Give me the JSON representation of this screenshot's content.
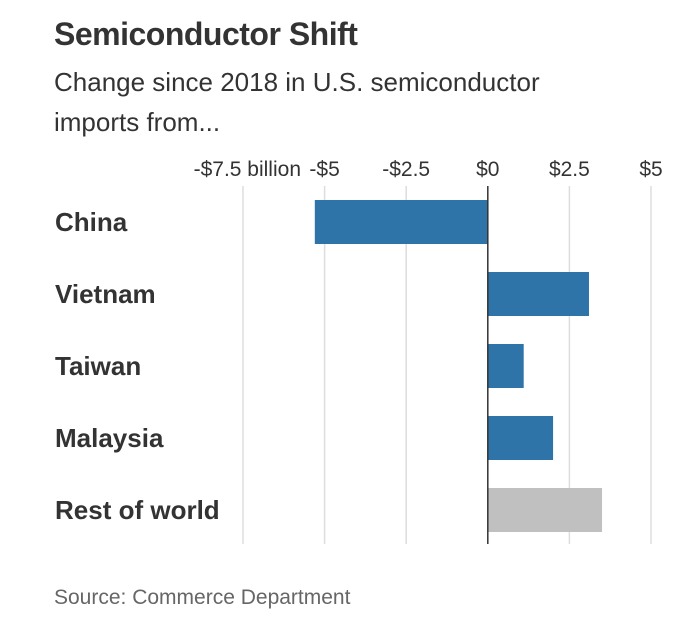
{
  "header": {
    "title": "Semiconductor Shift",
    "subtitle": "Change since 2018 in U.S. semiconductor imports from..."
  },
  "footer": {
    "source": "Source: Commerce Department"
  },
  "colors": {
    "highlight_bar": "#2f74a8",
    "muted_bar": "#c0c0c0",
    "gridline": "#dddddd",
    "zero_line": "#333333",
    "text": "#333333"
  },
  "chart_data": {
    "type": "bar",
    "orientation": "horizontal",
    "title": "Semiconductor Shift",
    "subtitle": "Change since 2018 in U.S. semiconductor imports from...",
    "categories": [
      "China",
      "Vietnam",
      "Taiwan",
      "Malaysia",
      "Rest of world"
    ],
    "values": [
      -5.3,
      3.1,
      1.1,
      2.0,
      3.5
    ],
    "bar_colors": [
      "#2f74a8",
      "#2f74a8",
      "#2f74a8",
      "#2f74a8",
      "#c0c0c0"
    ],
    "xlim": [
      -7.5,
      5
    ],
    "ticks": [
      -7.5,
      -5,
      -2.5,
      0,
      2.5,
      5
    ],
    "tick_labels": [
      "-$7.5 billion",
      "-$5",
      "-$2.5",
      "$0",
      "$2.5",
      "$5"
    ],
    "xlabel": "",
    "ylabel": "",
    "grid": true,
    "legend": "none"
  }
}
